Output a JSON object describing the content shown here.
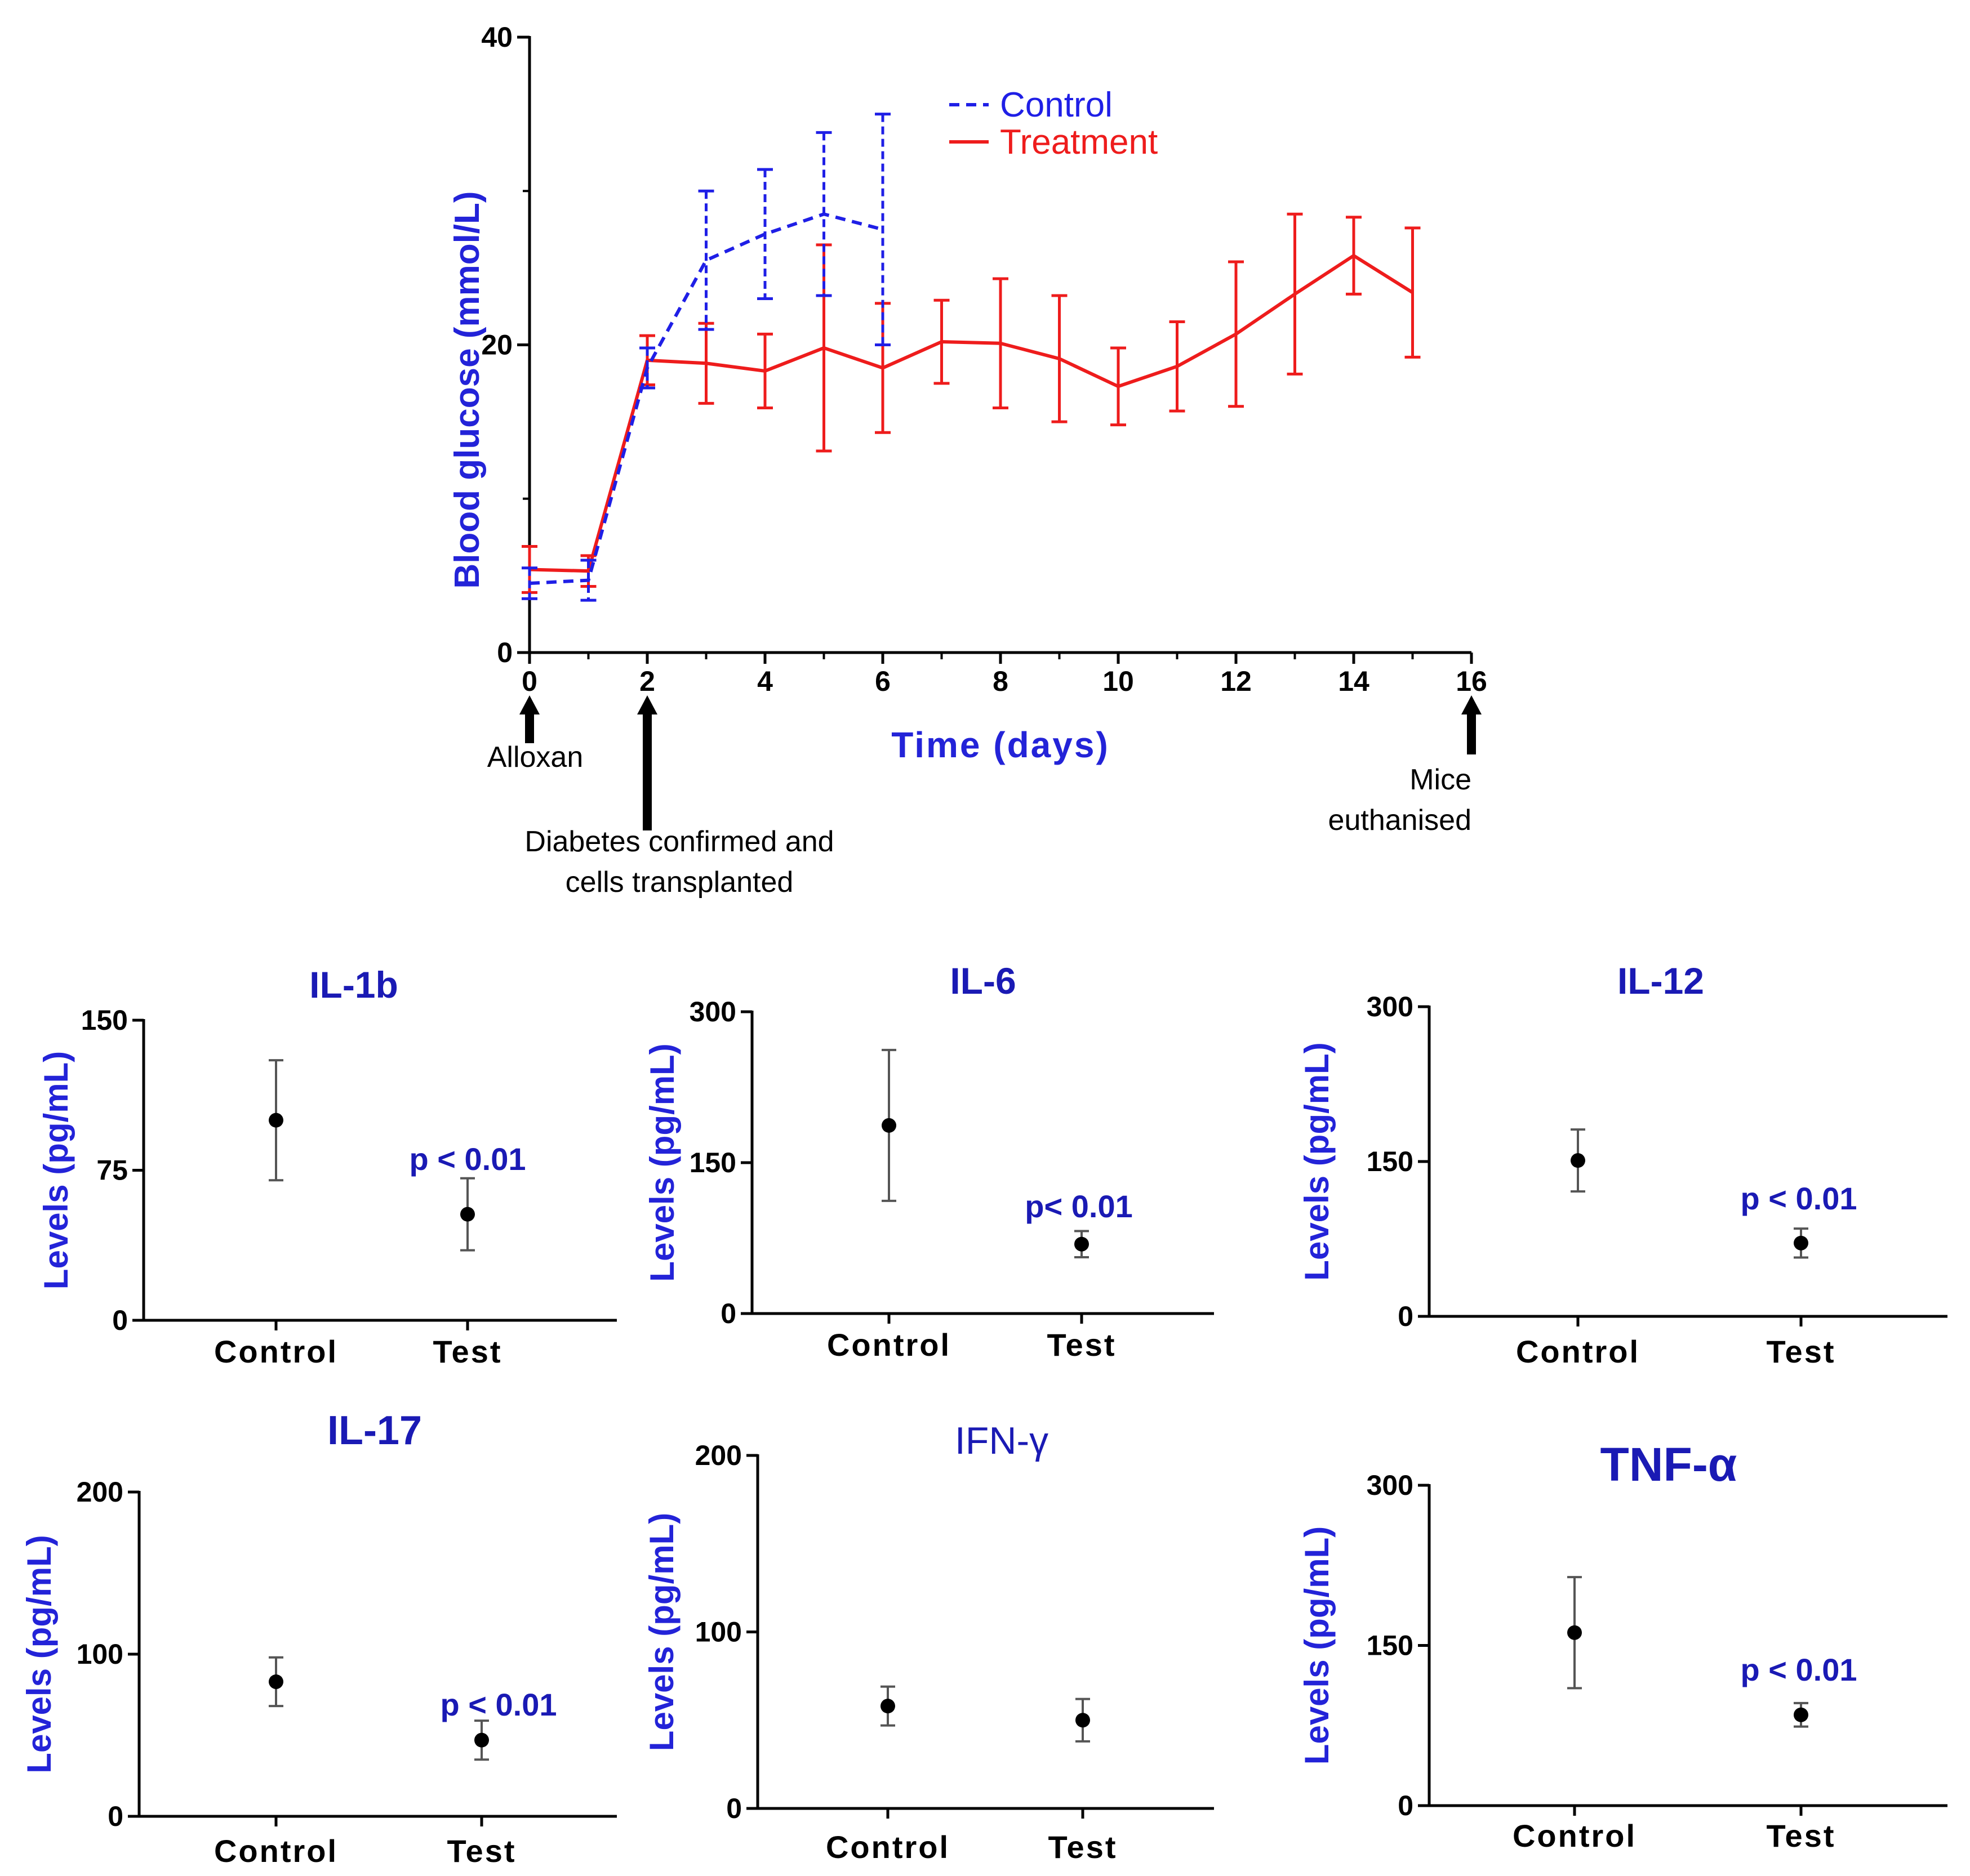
{
  "chart_data": [
    {
      "type": "line",
      "ylabel": "Blood glucose (mmol/L)",
      "xlabel": "Time (days)",
      "xlim": [
        0,
        16
      ],
      "ylim": [
        0,
        40
      ],
      "xticks": [
        "0",
        "2",
        "4",
        "6",
        "8",
        "10",
        "12",
        "14",
        "16"
      ],
      "yticks": [
        "0",
        "20",
        "40"
      ],
      "legend": {
        "position": "top-center"
      },
      "series": [
        {
          "name": "Control",
          "style": "dashed",
          "color": "#1f1fe6",
          "x": [
            0,
            1,
            2,
            3,
            4,
            5,
            6
          ],
          "y": [
            4.5,
            4.7,
            18.5,
            25.5,
            27.2,
            28.5,
            27.5
          ],
          "err": [
            1.0,
            1.3,
            1.3,
            4.5,
            4.2,
            5.3,
            7.5
          ]
        },
        {
          "name": "Treatment",
          "style": "solid",
          "color": "#ee1c1c",
          "x": [
            0,
            1,
            2,
            3,
            4,
            5,
            6,
            7,
            8,
            9,
            10,
            11,
            12,
            13,
            14,
            15
          ],
          "y": [
            5.4,
            5.3,
            19.0,
            18.8,
            18.3,
            19.8,
            18.5,
            20.2,
            20.1,
            19.1,
            17.3,
            18.6,
            20.7,
            23.3,
            25.8,
            23.4
          ],
          "err": [
            1.5,
            1.0,
            1.6,
            2.6,
            2.4,
            6.7,
            4.2,
            2.7,
            4.2,
            4.1,
            2.5,
            2.9,
            4.7,
            5.2,
            2.5,
            4.2
          ]
        }
      ],
      "annotations": [
        {
          "x": 0,
          "lines": [
            "Alloxan"
          ]
        },
        {
          "x": 2,
          "lines": [
            "Diabetes confirmed and",
            "cells transplanted"
          ]
        },
        {
          "x": 16,
          "lines": [
            "Mice",
            "euthanised"
          ]
        }
      ]
    },
    {
      "type": "scatter",
      "title": "IL-1b",
      "ylabel": "Levels (pg/mL)",
      "categories": [
        "Control",
        "Test"
      ],
      "ylim": [
        0,
        150
      ],
      "yticks": [
        "0",
        "75",
        "150"
      ],
      "values": [
        100,
        53
      ],
      "err": [
        30,
        18
      ],
      "pvalue": "p < 0.01"
    },
    {
      "type": "scatter",
      "title": "IL-6",
      "ylabel": "Levels (pg/mL)",
      "categories": [
        "Control",
        "Test"
      ],
      "ylim": [
        0,
        300
      ],
      "yticks": [
        "0",
        "150",
        "300"
      ],
      "values": [
        187,
        69
      ],
      "err": [
        75,
        13
      ],
      "pvalue": "p< 0.01"
    },
    {
      "type": "scatter",
      "title": "IL-12",
      "ylabel": "Levels (pg/mL)",
      "categories": [
        "Control",
        "Test"
      ],
      "ylim": [
        0,
        300
      ],
      "yticks": [
        "0",
        "150",
        "300"
      ],
      "values": [
        151,
        71
      ],
      "err": [
        30,
        14
      ],
      "pvalue": "p < 0.01"
    },
    {
      "type": "scatter",
      "title": "IL-17",
      "ylabel": "Levels (pg/mL)",
      "categories": [
        "Control",
        "Test"
      ],
      "ylim": [
        0,
        200
      ],
      "yticks": [
        "0",
        "100",
        "200"
      ],
      "values": [
        83,
        47
      ],
      "err": [
        15,
        12
      ],
      "pvalue": "p < 0.01"
    },
    {
      "type": "scatter",
      "title": "IFN-γ",
      "ylabel": "Levels (pg/mL)",
      "categories": [
        "Control",
        "Test"
      ],
      "ylim": [
        0,
        200
      ],
      "yticks": [
        "0",
        "100",
        "200"
      ],
      "values": [
        58,
        50
      ],
      "err": [
        11,
        12
      ],
      "pvalue": ""
    },
    {
      "type": "scatter",
      "title": "TNF-α",
      "ylabel": "Levels (pg/mL)",
      "categories": [
        "Control",
        "Test"
      ],
      "ylim": [
        0,
        300
      ],
      "yticks": [
        "0",
        "150",
        "300"
      ],
      "values": [
        162,
        85
      ],
      "err": [
        52,
        11
      ],
      "pvalue": "p < 0.01"
    }
  ]
}
